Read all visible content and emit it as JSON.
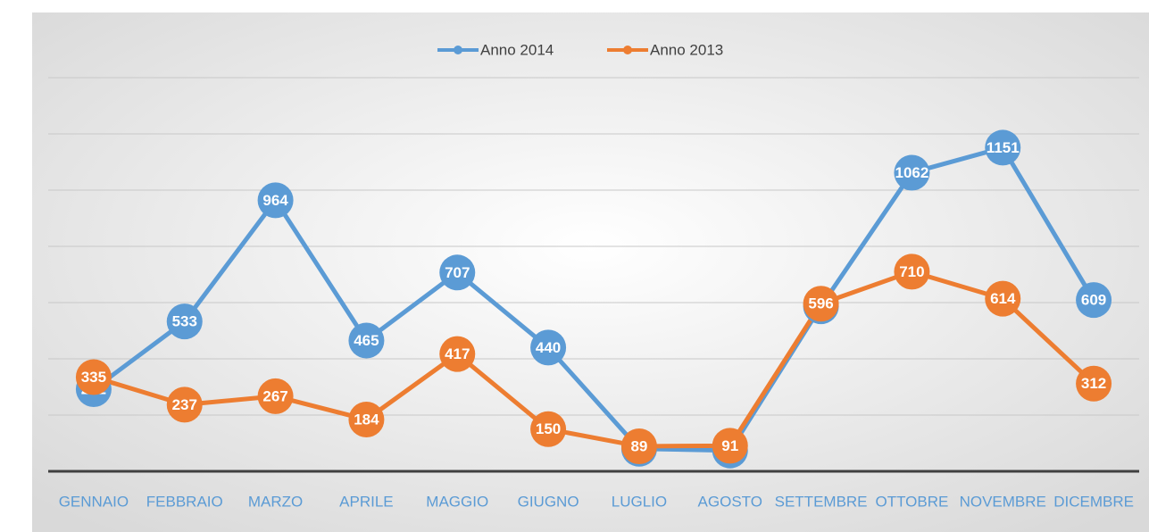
{
  "chart_data": {
    "type": "line",
    "categories": [
      "GENNAIO",
      "FEBBRAIO",
      "MARZO",
      "APRILE",
      "MAGGIO",
      "GIUGNO",
      "LUGLIO",
      "AGOSTO",
      "SETTEMBRE",
      "OTTOBRE",
      "NOVEMBRE",
      "DICEMBRE"
    ],
    "series": [
      {
        "name": "Anno 2014",
        "color": "#5b9bd5",
        "values": [
          292,
          533,
          964,
          465,
          707,
          440,
          80,
          74,
          587,
          1062,
          1151,
          609
        ]
      },
      {
        "name": "Anno 2013",
        "color": "#ed7d31",
        "values": [
          335,
          237,
          267,
          184,
          417,
          150,
          89,
          91,
          596,
          710,
          614,
          312
        ]
      }
    ],
    "ylim": [
      0,
      1400
    ],
    "yticks": [
      0,
      200,
      400,
      600,
      800,
      1000,
      1200,
      1400
    ],
    "grid": true,
    "legend": "top"
  }
}
